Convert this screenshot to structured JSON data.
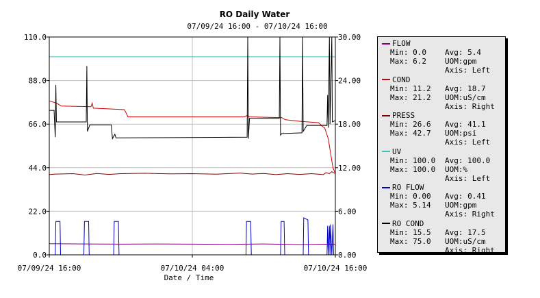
{
  "header": {
    "title": "RO Daily Water",
    "subtitle": "07/09/24 16:00 - 07/10/24 16:00"
  },
  "chart_data": {
    "type": "line",
    "title": "RO Daily Water",
    "subtitle": "07/09/24 16:00 - 07/10/24 16:00",
    "xlabel": "Date / Time",
    "x_ticks": [
      "07/09/24 16:00",
      "07/10/24 04:00",
      "07/10/24 16:00"
    ],
    "xlim_hours": [
      0,
      24
    ],
    "y_left": {
      "ticks": [
        "0.0",
        "22.0",
        "44.0",
        "66.0",
        "88.0",
        "110.0"
      ],
      "ylim": [
        0,
        110
      ]
    },
    "y_right": {
      "ticks": [
        "0.00",
        "6.00",
        "12.00",
        "18.00",
        "24.00",
        "30.00"
      ],
      "ylim": [
        0,
        30
      ]
    },
    "grid": true,
    "legend_position": "right",
    "series": [
      {
        "name": "FLOW",
        "color": "#800080",
        "axis": "Left",
        "uom": "gpm",
        "min": "0.0",
        "max": "6.2",
        "avg": "5.4",
        "points": [
          [
            0,
            5.6
          ],
          [
            3,
            5.5
          ],
          [
            6,
            5.4
          ],
          [
            9,
            5.5
          ],
          [
            12,
            5.4
          ],
          [
            15,
            5.3
          ],
          [
            18,
            5.5
          ],
          [
            21,
            5.2
          ],
          [
            23.7,
            5.4
          ],
          [
            24,
            5.4
          ]
        ]
      },
      {
        "name": "COND",
        "color": "#cc0000",
        "axis": "Right",
        "uom": "uS/cm",
        "min": "11.2",
        "max": "21.2",
        "avg": "18.7",
        "points": [
          [
            0,
            21.2
          ],
          [
            0.6,
            20.9
          ],
          [
            1.0,
            20.5
          ],
          [
            3.5,
            20.4
          ],
          [
            3.6,
            20.9
          ],
          [
            3.7,
            20.2
          ],
          [
            6.3,
            20.0
          ],
          [
            6.4,
            19.7
          ],
          [
            6.6,
            19.0
          ],
          [
            16.4,
            19.0
          ],
          [
            16.6,
            19.2
          ],
          [
            16.8,
            19.0
          ],
          [
            19.5,
            18.9
          ],
          [
            19.8,
            18.6
          ],
          [
            21.0,
            18.4
          ],
          [
            22.6,
            18.2
          ],
          [
            22.9,
            17.7
          ],
          [
            23.1,
            17.5
          ],
          [
            23.4,
            16.0
          ],
          [
            23.6,
            14.0
          ],
          [
            23.8,
            12.0
          ],
          [
            24,
            11.2
          ]
        ]
      },
      {
        "name": "PRESS",
        "color": "#800000",
        "axis": "Left",
        "uom": "psi",
        "min": "26.6",
        "max": "42.7",
        "avg": "41.1",
        "points": [
          [
            0,
            40.5
          ],
          [
            0.5,
            40.8
          ],
          [
            2,
            41.0
          ],
          [
            3,
            40.3
          ],
          [
            4,
            41.1
          ],
          [
            5,
            40.6
          ],
          [
            6,
            41.0
          ],
          [
            8,
            41.2
          ],
          [
            10,
            40.9
          ],
          [
            12,
            41.0
          ],
          [
            14,
            40.7
          ],
          [
            16,
            41.3
          ],
          [
            17,
            40.8
          ],
          [
            18,
            41.1
          ],
          [
            19,
            40.5
          ],
          [
            20,
            41.0
          ],
          [
            21,
            40.6
          ],
          [
            22,
            41.0
          ],
          [
            23,
            40.5
          ],
          [
            23.2,
            41.5
          ],
          [
            23.5,
            41.0
          ],
          [
            23.7,
            42.0
          ],
          [
            24,
            41.0
          ]
        ]
      },
      {
        "name": "UV",
        "color": "#40c0c0",
        "axis": "Left",
        "uom": "%",
        "min": "100.0",
        "max": "100.0",
        "avg": "100.0",
        "points": [
          [
            0,
            100
          ],
          [
            24,
            100
          ]
        ]
      },
      {
        "name": "RO FLOW",
        "color": "#0000cc",
        "axis": "Right",
        "uom": "gpm",
        "min": "0.00",
        "max": "5.14",
        "avg": "0.41",
        "points": [
          [
            0,
            0
          ],
          [
            0.5,
            0
          ],
          [
            0.55,
            4.6
          ],
          [
            0.9,
            4.6
          ],
          [
            0.95,
            0
          ],
          [
            2.9,
            0
          ],
          [
            2.95,
            4.6
          ],
          [
            3.3,
            4.6
          ],
          [
            3.35,
            0
          ],
          [
            5.4,
            0
          ],
          [
            5.45,
            4.6
          ],
          [
            5.8,
            4.6
          ],
          [
            5.85,
            0
          ],
          [
            16.5,
            0
          ],
          [
            16.55,
            4.6
          ],
          [
            16.9,
            4.6
          ],
          [
            16.95,
            0
          ],
          [
            19.4,
            0
          ],
          [
            19.45,
            4.6
          ],
          [
            19.7,
            4.6
          ],
          [
            19.75,
            0
          ],
          [
            21.3,
            0
          ],
          [
            21.35,
            5.1
          ],
          [
            21.7,
            4.8
          ],
          [
            21.75,
            0
          ],
          [
            23.3,
            0
          ],
          [
            23.35,
            4.0
          ],
          [
            23.4,
            0
          ],
          [
            23.5,
            4.0
          ],
          [
            23.55,
            0
          ],
          [
            23.6,
            4.2
          ],
          [
            23.7,
            0
          ],
          [
            23.8,
            4.2
          ],
          [
            23.85,
            0
          ],
          [
            24,
            0
          ]
        ]
      },
      {
        "name": "RO COND",
        "color": "#000000",
        "axis": "Right",
        "uom": "uS/cm",
        "min": "15.5",
        "max": "75.0",
        "avg": "17.5",
        "points": [
          [
            0,
            19.9
          ],
          [
            0.4,
            19.9
          ],
          [
            0.5,
            16.2
          ],
          [
            0.55,
            23.4
          ],
          [
            0.6,
            18.3
          ],
          [
            3.1,
            18.3
          ],
          [
            3.15,
            26.0
          ],
          [
            3.2,
            17.0
          ],
          [
            3.4,
            17.9
          ],
          [
            5.2,
            17.9
          ],
          [
            5.3,
            16.0
          ],
          [
            5.5,
            16.6
          ],
          [
            5.6,
            16.1
          ],
          [
            16.6,
            16.2
          ],
          [
            16.65,
            30.0
          ],
          [
            16.7,
            16.0
          ],
          [
            16.8,
            18.8
          ],
          [
            19.3,
            18.8
          ],
          [
            19.35,
            30.0
          ],
          [
            19.4,
            16.5
          ],
          [
            19.5,
            16.7
          ],
          [
            21.2,
            16.8
          ],
          [
            21.25,
            30.0
          ],
          [
            21.3,
            17.0
          ],
          [
            21.6,
            17.8
          ],
          [
            23.3,
            17.8
          ],
          [
            23.35,
            22.0
          ],
          [
            23.4,
            17.5
          ],
          [
            23.5,
            30.0
          ],
          [
            23.55,
            18.0
          ],
          [
            23.7,
            30.0
          ],
          [
            23.75,
            18.3
          ],
          [
            24,
            18.5
          ]
        ]
      }
    ]
  }
}
